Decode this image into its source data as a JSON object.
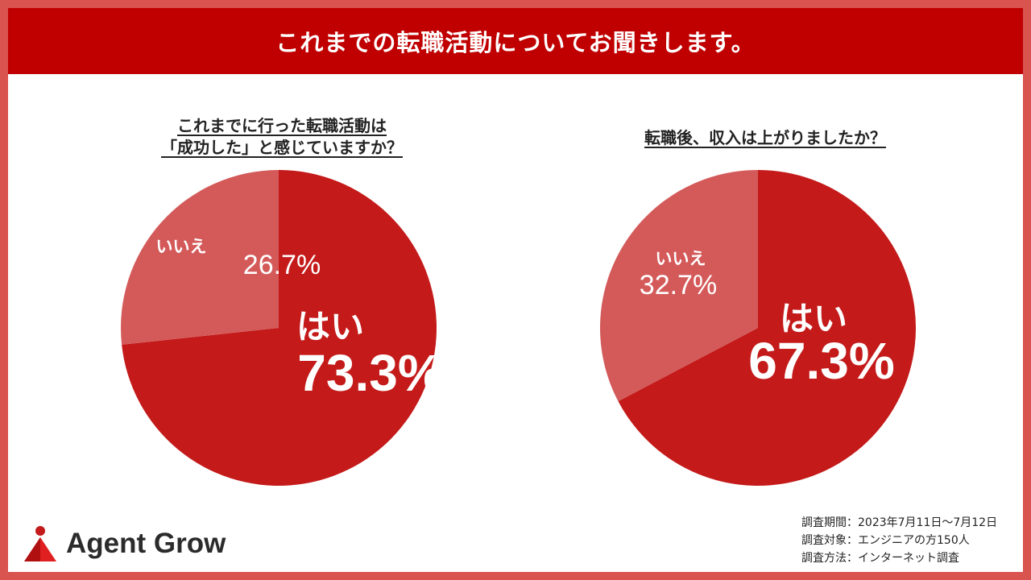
{
  "banner": {
    "title": "これまでの転職活動についてお聞きします。"
  },
  "chart_data": [
    {
      "type": "pie",
      "title": "これまでに行った転職活動は\n「成功した」と感じていますか？",
      "slices": [
        {
          "label": "はい",
          "value": 73.3,
          "value_label": "73.3%",
          "color": "#c41a1a"
        },
        {
          "label": "いいえ",
          "value": 26.7,
          "value_label": "26.7%",
          "color": "#d45a5a"
        }
      ]
    },
    {
      "type": "pie",
      "title": "転職後、収入は上がりましたか？",
      "slices": [
        {
          "label": "はい",
          "value": 67.3,
          "value_label": "67.3%",
          "color": "#c41a1a"
        },
        {
          "label": "いいえ",
          "value": 32.7,
          "value_label": "32.7%",
          "color": "#d45a5a"
        }
      ]
    }
  ],
  "brand": {
    "name": "Agent Grow",
    "logo_icon": "red-triangle-person-icon"
  },
  "survey": {
    "period": "調査期間：2023年7月11日～7月12日",
    "target": "調査対象：エンジニアの方150人",
    "method": "調査方法：インターネット調査"
  }
}
